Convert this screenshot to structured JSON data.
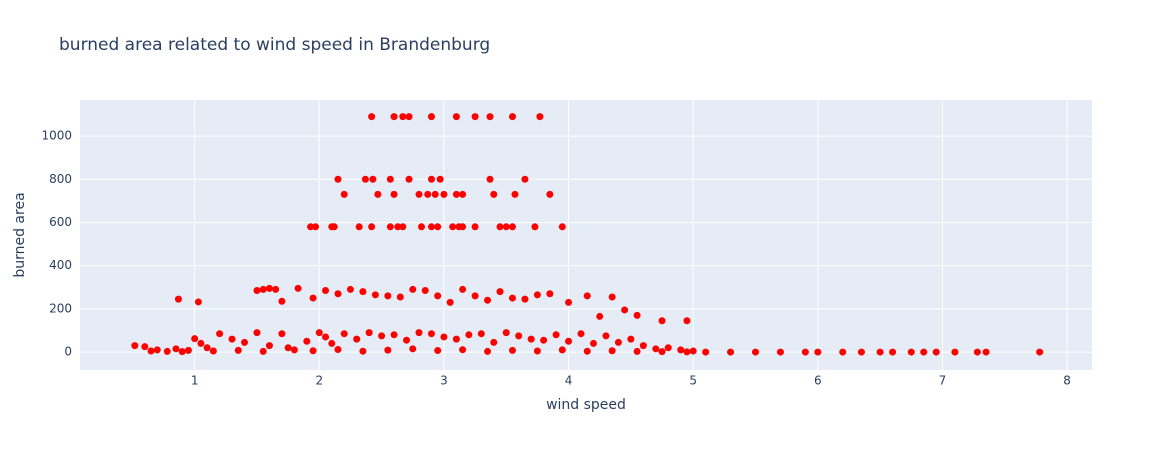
{
  "chart_data": {
    "type": "scatter",
    "title": "burned area related to wind speed in Brandenburg",
    "x_label": "wind speed",
    "y_label": "burned area",
    "series": [
      {
        "color": "#ff0000",
        "x": [
          2.42,
          2.6,
          2.67,
          2.72,
          2.9,
          3.1,
          3.25,
          3.37,
          3.55,
          3.77,
          2.15,
          2.37,
          2.43,
          2.57,
          2.72,
          2.9,
          2.97,
          3.37,
          3.65,
          2.2,
          2.47,
          2.6,
          2.8,
          2.87,
          2.93,
          3.0,
          3.1,
          3.15,
          3.4,
          3.57,
          3.85,
          1.93,
          1.97,
          2.1,
          2.12,
          2.32,
          2.42,
          2.57,
          2.63,
          2.67,
          2.82,
          2.9,
          2.95,
          3.07,
          3.12,
          3.15,
          3.25,
          3.45,
          3.5,
          3.55,
          3.73,
          3.95,
          0.87,
          1.03,
          1.5,
          1.55,
          1.6,
          1.65,
          1.7,
          1.83,
          1.95,
          2.05,
          2.15,
          2.25,
          2.35,
          2.45,
          2.55,
          2.65,
          2.75,
          2.85,
          2.95,
          3.05,
          3.15,
          3.25,
          3.35,
          3.45,
          3.55,
          3.65,
          3.75,
          3.85,
          4.0,
          4.15,
          4.35,
          4.25,
          4.45,
          4.55,
          4.75,
          4.95,
          0.52,
          0.6,
          0.65,
          0.7,
          0.78,
          0.85,
          0.95,
          1.0,
          1.05,
          1.1,
          1.2,
          1.3,
          1.4,
          1.5,
          1.6,
          1.7,
          1.75,
          1.9,
          2.0,
          2.05,
          2.1,
          2.2,
          2.3,
          2.4,
          2.5,
          2.6,
          2.7,
          2.8,
          2.9,
          3.0,
          3.1,
          3.2,
          3.3,
          3.4,
          3.5,
          3.6,
          3.7,
          3.8,
          3.9,
          4.0,
          4.1,
          4.2,
          4.3,
          4.4,
          4.5,
          4.6,
          4.7,
          4.8,
          4.9,
          5.0,
          0.9,
          1.15,
          1.35,
          1.55,
          1.8,
          1.95,
          2.15,
          2.35,
          2.55,
          2.75,
          2.95,
          3.15,
          3.35,
          3.55,
          3.75,
          3.95,
          4.15,
          4.35,
          4.55,
          4.75,
          4.95,
          5.1,
          5.3,
          5.5,
          5.7,
          5.9,
          6.0,
          6.2,
          6.35,
          6.5,
          6.6,
          6.75,
          6.85,
          6.95,
          7.1,
          7.28,
          7.35,
          7.78
        ],
        "values": [
          1090,
          1090,
          1090,
          1090,
          1090,
          1090,
          1090,
          1090,
          1090,
          1090,
          800,
          800,
          800,
          800,
          800,
          800,
          800,
          800,
          800,
          730,
          730,
          730,
          730,
          730,
          730,
          730,
          730,
          730,
          730,
          730,
          730,
          580,
          580,
          580,
          580,
          580,
          580,
          580,
          580,
          580,
          580,
          580,
          580,
          580,
          580,
          580,
          580,
          580,
          580,
          580,
          580,
          580,
          245,
          232,
          285,
          290,
          295,
          290,
          235,
          295,
          250,
          285,
          270,
          290,
          280,
          265,
          260,
          255,
          290,
          285,
          260,
          230,
          290,
          260,
          240,
          280,
          250,
          245,
          265,
          270,
          230,
          260,
          255,
          165,
          195,
          170,
          145,
          145,
          30,
          25,
          5,
          10,
          3,
          15,
          8,
          62,
          40,
          20,
          85,
          60,
          45,
          90,
          30,
          85,
          20,
          50,
          90,
          70,
          40,
          85,
          60,
          90,
          75,
          80,
          55,
          90,
          85,
          70,
          60,
          80,
          85,
          45,
          90,
          75,
          60,
          55,
          80,
          50,
          85,
          40,
          75,
          45,
          60,
          30,
          15,
          20,
          10,
          5,
          2,
          5,
          8,
          3,
          10,
          6,
          12,
          4,
          9,
          15,
          7,
          11,
          3,
          8,
          5,
          10,
          4,
          6,
          3,
          2,
          1,
          0,
          0,
          0,
          0,
          0,
          0,
          0,
          0,
          0,
          0,
          0,
          0,
          0,
          0,
          0,
          0,
          0
        ]
      }
    ],
    "xlim": [
      0.08,
      8.2
    ],
    "ylim": [
      -83,
      1167
    ],
    "xticks": [
      1,
      2,
      3,
      4,
      5,
      6,
      7,
      8
    ],
    "yticks": [
      0,
      200,
      400,
      600,
      800,
      1000
    ],
    "grid": true
  }
}
